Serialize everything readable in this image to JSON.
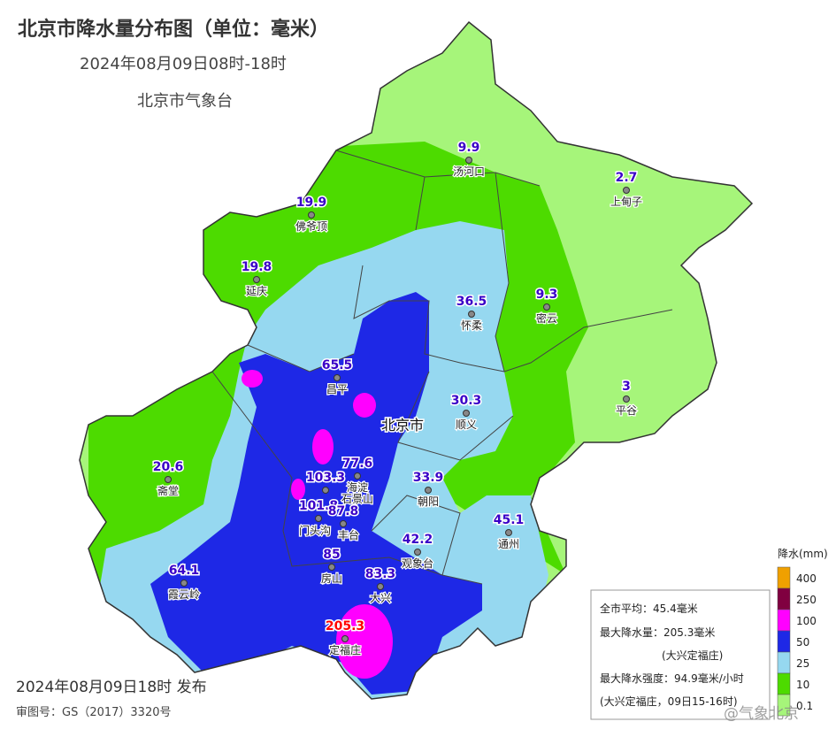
{
  "header": {
    "title": "北京市降水量分布图（单位：毫米）",
    "period": "2024年08月09日08时-18时",
    "issuer": "北京市气象台"
  },
  "city_label": "北京市",
  "stations": [
    {
      "name": "汤河口",
      "value": 9.9
    },
    {
      "name": "上甸子",
      "value": 2.7
    },
    {
      "name": "佛爷顶",
      "value": 19.9
    },
    {
      "name": "延庆",
      "value": 19.8
    },
    {
      "name": "怀柔",
      "value": 36.5
    },
    {
      "name": "密云",
      "value": 9.3
    },
    {
      "name": "昌平",
      "value": 65.5
    },
    {
      "name": "平谷",
      "value": 3
    },
    {
      "name": "顺义",
      "value": 30.3
    },
    {
      "name": "斋堂",
      "value": 20.6
    },
    {
      "name": "海淀",
      "value": 77.6
    },
    {
      "name": "石景山",
      "value": 103.3
    },
    {
      "name": "门头沟",
      "value": 101.8
    },
    {
      "name": "丰台",
      "value": 87.8
    },
    {
      "name": "朝阳",
      "value": 33.9
    },
    {
      "name": "通州",
      "value": 45.1
    },
    {
      "name": "观象台",
      "value": 42.2
    },
    {
      "name": "房山",
      "value": 85
    },
    {
      "name": "霞云岭",
      "value": 64.1
    },
    {
      "name": "大兴",
      "value": 83.3
    },
    {
      "name": "定福庄",
      "value": 205.3
    }
  ],
  "legend": {
    "title": "降水(mm)",
    "items": [
      {
        "label": "400",
        "color": "#f0a000"
      },
      {
        "label": "250",
        "color": "#800040"
      },
      {
        "label": "100",
        "color": "#ff00ff"
      },
      {
        "label": "50",
        "color": "#1e28e6"
      },
      {
        "label": "25",
        "color": "#96d8f0"
      },
      {
        "label": "10",
        "color": "#4ddb00"
      },
      {
        "label": "0.1",
        "color": "#a6f57a"
      }
    ]
  },
  "summary": [
    "全市平均：45.4毫米",
    "最大降水量：205.3毫米",
    "(大兴定福庄)",
    "最大降水强度：94.9毫米/小时",
    "(大兴定福庄，09日15-16时)"
  ],
  "footer": {
    "release": "2024年08月09日18时 发布",
    "approval": "审图号：GS（2017）3320号",
    "watermark": "@气象北京"
  }
}
